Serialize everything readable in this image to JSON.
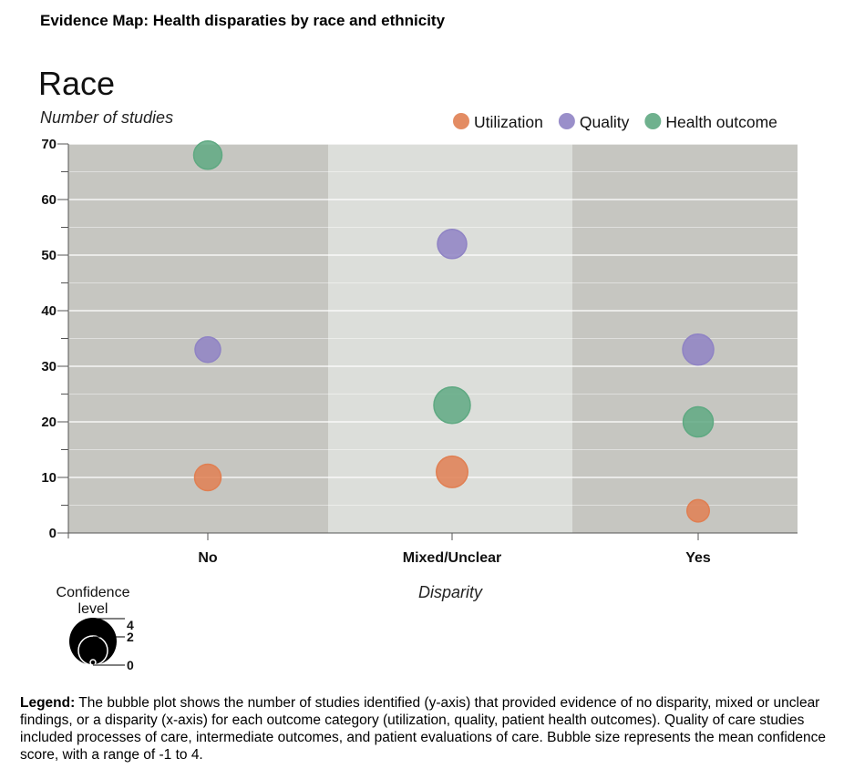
{
  "header": {
    "title": "Evidence Map: Health disparaties by race and ethnicity"
  },
  "footer": {
    "label": "Legend:",
    "text": " The bubble plot shows the number of studies identified (y-axis) that provided evidence of no disparity, mixed or unclear findings, or a disparity (x-axis) for each outcome category (utilization, quality, patient health outcomes). Quality of care studies included processes of care, intermediate outcomes, and patient evaluations of care. Bubble size represents the mean confidence score, with a range of -1 to 4."
  },
  "chart_data": {
    "type": "scatter",
    "title": "Race",
    "xlabel": "Disparity",
    "ylabel": "Number of studies",
    "categories": [
      "No",
      "Mixed/Unclear",
      "Yes"
    ],
    "ylim": [
      0,
      70
    ],
    "yticks": [
      0,
      10,
      20,
      30,
      40,
      50,
      60,
      70
    ],
    "legend_position": "top-right",
    "series": [
      {
        "name": "Utilization",
        "color": "#e07f52",
        "values": [
          10,
          11,
          4
        ],
        "confidence": [
          1.8,
          2.9,
          0.9
        ]
      },
      {
        "name": "Quality",
        "color": "#8f83c4",
        "values": [
          33,
          52,
          33
        ],
        "confidence": [
          1.6,
          2.4,
          2.8
        ]
      },
      {
        "name": "Health outcome",
        "color": "#5fa982",
        "values": [
          68,
          23,
          20
        ],
        "confidence": [
          2.2,
          4.0,
          2.6
        ]
      }
    ],
    "size_legend": {
      "title_line1": "Confidence",
      "title_line2": "level",
      "ticks": [
        "4",
        "2",
        "0"
      ],
      "range": [
        -1,
        4
      ]
    }
  }
}
